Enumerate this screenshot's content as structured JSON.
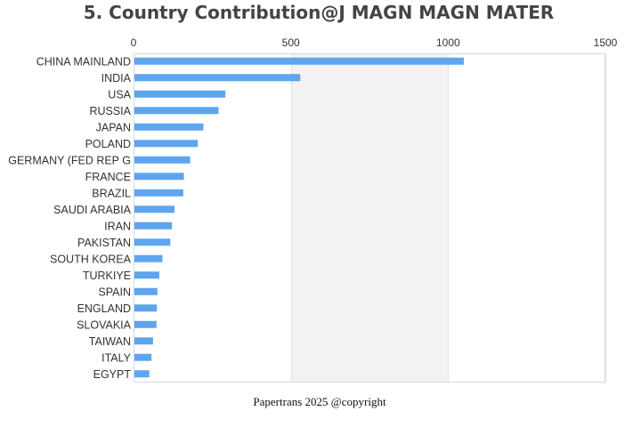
{
  "chart_data": {
    "type": "bar",
    "orientation": "horizontal",
    "title": "5. Country Contribution@J MAGN MAGN MATER",
    "xlabel": "",
    "ylabel": "",
    "xlim": [
      0,
      1500
    ],
    "x_ticks": [
      0,
      500,
      1000,
      1500
    ],
    "x_axis_position": "top",
    "grid": false,
    "alternating_band_shading": true,
    "legend": "none",
    "bar_color": "#5ea5ee",
    "band_color": "#f2f2f2",
    "categories": [
      "CHINA MAINLAND",
      "INDIA",
      "USA",
      "RUSSIA",
      "JAPAN",
      "POLAND",
      "GERMANY (FED REP G",
      "FRANCE",
      "BRAZIL",
      "SAUDI ARABIA",
      "IRAN",
      "PAKISTAN",
      "SOUTH KOREA",
      "TURKIYE",
      "SPAIN",
      "ENGLAND",
      "SLOVAKIA",
      "TAIWAN",
      "ITALY",
      "EGYPT"
    ],
    "values": [
      1050,
      530,
      292,
      270,
      222,
      204,
      180,
      160,
      158,
      130,
      122,
      117,
      92,
      82,
      76,
      74,
      73,
      62,
      57,
      50
    ]
  },
  "footer": "Papertrans 2025 @copyright"
}
